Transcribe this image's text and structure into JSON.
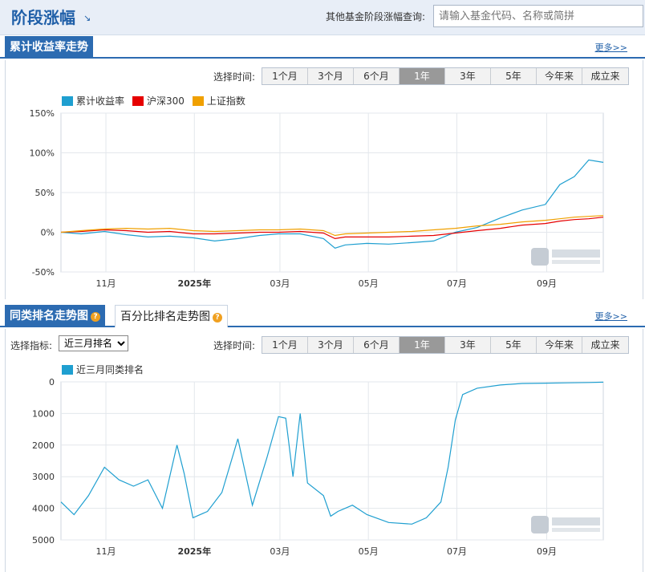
{
  "header": {
    "title": "阶段涨幅",
    "arrow": "↘",
    "query_label": "其他基金阶段涨幅查询:",
    "search_placeholder": "请输入基金代码、名称或简拼"
  },
  "section1": {
    "tab": "累计收益率走势",
    "more": "更多>>"
  },
  "section2": {
    "tab": "同类排名走势图",
    "tab2": "百分比排名走势图",
    "more": "更多>>"
  },
  "time_selector": {
    "label": "选择时间:",
    "options": [
      "1个月",
      "3个月",
      "6个月",
      "1年",
      "3年",
      "5年",
      "今年来",
      "成立来"
    ],
    "active_index": 3
  },
  "indicator": {
    "label": "选择指标:",
    "selected": "近三月排名"
  },
  "colors": {
    "fund": "#1f9fd0",
    "hs300": "#e60000",
    "sh": "#f0a000",
    "rank": "#1f9fd0",
    "accent": "#2c6bb1"
  },
  "x_axis_ticks": [
    "11月",
    "2025年",
    "03月",
    "05月",
    "07月",
    "09月"
  ],
  "chart_data": [
    {
      "type": "line",
      "title": "",
      "ylabel": "",
      "ylim": [
        -50,
        150
      ],
      "y_ticks": [
        "150%",
        "100%",
        "50%",
        "0%",
        "-50%"
      ],
      "x": [
        "2024-10-01",
        "2024-10-15",
        "2024-10-31",
        "2024-11-15",
        "2024-11-30",
        "2024-12-15",
        "2024-12-31",
        "2025-01-15",
        "2025-01-31",
        "2025-02-15",
        "2025-02-28",
        "2025-03-15",
        "2025-03-31",
        "2025-04-08",
        "2025-04-15",
        "2025-04-30",
        "2025-05-15",
        "2025-05-31",
        "2025-06-15",
        "2025-06-30",
        "2025-07-15",
        "2025-07-31",
        "2025-08-15",
        "2025-08-31",
        "2025-09-10",
        "2025-09-20",
        "2025-09-30",
        "2025-10-10"
      ],
      "series": [
        {
          "name": "累计收益率",
          "color": "#1f9fd0",
          "values": [
            0,
            -2,
            1,
            -3,
            -6,
            -5,
            -7,
            -11,
            -8,
            -4,
            -2,
            -2,
            -8,
            -20,
            -16,
            -14,
            -15,
            -13,
            -11,
            0,
            6,
            18,
            28,
            35,
            60,
            70,
            91,
            88
          ]
        },
        {
          "name": "沪深300",
          "color": "#e60000",
          "values": [
            0,
            1,
            3,
            2,
            0,
            1,
            -2,
            -2,
            -1,
            0,
            0,
            1,
            -1,
            -8,
            -6,
            -6,
            -6,
            -5,
            -4,
            -1,
            2,
            5,
            9,
            11,
            14,
            16,
            17,
            19
          ]
        },
        {
          "name": "上证指数",
          "color": "#f0a000",
          "values": [
            0,
            2,
            4,
            5,
            4,
            5,
            2,
            1,
            2,
            3,
            3,
            4,
            2,
            -4,
            -2,
            -1,
            0,
            1,
            3,
            5,
            8,
            10,
            13,
            15,
            17,
            19,
            20,
            21
          ]
        }
      ]
    },
    {
      "type": "line",
      "title": "",
      "ylabel": "",
      "ylim": [
        0,
        5000
      ],
      "y_inverted": true,
      "y_ticks": [
        "0",
        "1000",
        "2000",
        "3000",
        "4000",
        "5000"
      ],
      "x": [
        "2024-10-01",
        "2024-10-10",
        "2024-10-20",
        "2024-10-31",
        "2024-11-10",
        "2024-11-20",
        "2024-11-30",
        "2024-12-10",
        "2024-12-20",
        "2024-12-25",
        "2024-12-31",
        "2025-01-10",
        "2025-01-20",
        "2025-01-31",
        "2025-02-10",
        "2025-02-20",
        "2025-02-28",
        "2025-03-05",
        "2025-03-10",
        "2025-03-15",
        "2025-03-20",
        "2025-03-31",
        "2025-04-05",
        "2025-04-10",
        "2025-04-20",
        "2025-04-30",
        "2025-05-15",
        "2025-05-31",
        "2025-06-10",
        "2025-06-20",
        "2025-06-25",
        "2025-06-30",
        "2025-07-05",
        "2025-07-15",
        "2025-07-31",
        "2025-08-15",
        "2025-08-31",
        "2025-09-15",
        "2025-09-30",
        "2025-10-10"
      ],
      "series": [
        {
          "name": "近三月同类排名",
          "color": "#1f9fd0",
          "values": [
            3800,
            4200,
            3600,
            2700,
            3100,
            3300,
            3100,
            4000,
            2000,
            2900,
            4300,
            4100,
            3500,
            1800,
            3900,
            2400,
            1100,
            1150,
            3000,
            1000,
            3200,
            3600,
            4250,
            4100,
            3900,
            4200,
            4450,
            4500,
            4300,
            3800,
            2700,
            1200,
            400,
            200,
            100,
            50,
            40,
            30,
            20,
            10
          ]
        }
      ]
    }
  ]
}
